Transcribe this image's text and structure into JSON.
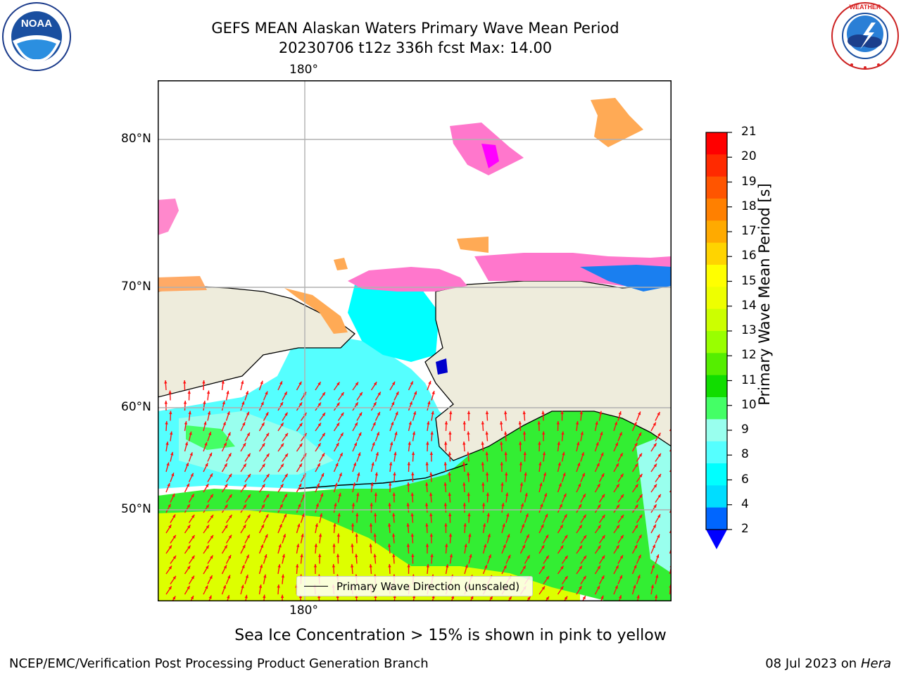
{
  "title": {
    "line1": "GEFS MEAN Alaskan Waters Primary Wave Mean Period",
    "line2": "20230706 t12z 336h fcst   Max: 14.00"
  },
  "logos": {
    "noaa_text": "NOAA",
    "noaa_ring": "NATIONAL OCEANIC AND ATMOSPHERIC ADMINISTRATION · U.S. DEPARTMENT OF COMMERCE",
    "nws_ring": "NATIONAL WEATHER SERVICE"
  },
  "map": {
    "lon_label_top": "180°",
    "lon_label_bottom": "180°",
    "lat_labels": [
      "80°N",
      "70°N",
      "60°N",
      "50°N"
    ],
    "legend_label": "Primary Wave Direction (unscaled)",
    "colors": {
      "land": "#eeecdc",
      "ocean_cyan": "#55ffff",
      "ocean_green": "#33ee33",
      "ocean_yellow": "#ddff00",
      "arrow": "#ff1010"
    }
  },
  "colorbar": {
    "label": "Primary Wave Mean Period [s]",
    "ticks": [
      "21",
      "20",
      "19",
      "18",
      "17",
      "16",
      "15",
      "14",
      "13",
      "12",
      "11",
      "10",
      "9",
      "8",
      "6",
      "4",
      "2"
    ],
    "colors_top_to_bottom": [
      "#ff0000",
      "#ff2a00",
      "#ff5500",
      "#ff8000",
      "#ffaa00",
      "#ffd400",
      "#ffff00",
      "#eeff00",
      "#ccff00",
      "#99ff00",
      "#55ee00",
      "#11dd00",
      "#44ff66",
      "#99ffee",
      "#55ffff",
      "#00ffff",
      "#00ddff",
      "#0066ff"
    ],
    "extend_color": "#0000ff"
  },
  "caption": "Sea Ice Concentration > 15% is shown in pink to yellow",
  "footer": {
    "left": "NCEP/EMC/Verification Post Processing Product Generation Branch",
    "right_date": "08 Jul 2023 on ",
    "right_host": "Hera"
  }
}
